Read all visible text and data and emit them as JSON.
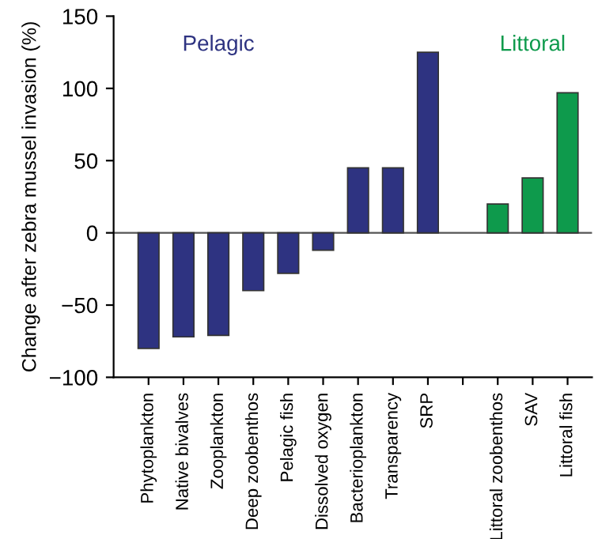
{
  "chart_data": {
    "type": "bar",
    "ylabel": "Change after zebra mussel invasion (%)",
    "categories": [
      "Phytoplankton",
      "Native bivalves",
      "Zooplankton",
      "Deep zoobenthos",
      "Pelagic fish",
      "Dissolved oxygen",
      "Bacterioplankton",
      "Transparency",
      "SRP",
      null,
      "Littoral zoobenthos",
      "SAV",
      "Littoral fish"
    ],
    "values": [
      -80,
      -72,
      -71,
      -40,
      -28,
      -12,
      45,
      45,
      125,
      null,
      20,
      38,
      97
    ],
    "colors": [
      "#2e3381",
      "#2e3381",
      "#2e3381",
      "#2e3381",
      "#2e3381",
      "#2e3381",
      "#2e3381",
      "#2e3381",
      "#2e3381",
      "#2e3381",
      "#0e9a4c",
      "#0e9a4c",
      "#0e9a4c"
    ],
    "ylim": [
      -100,
      150
    ],
    "yticks": [
      -100,
      -50,
      0,
      50,
      100,
      150
    ],
    "ref_lines": [
      {
        "axis": "y",
        "value": 0,
        "color": "#555555"
      }
    ],
    "annotations": [
      "Pelagic",
      "Littoral"
    ],
    "grid": false,
    "legend": false
  }
}
